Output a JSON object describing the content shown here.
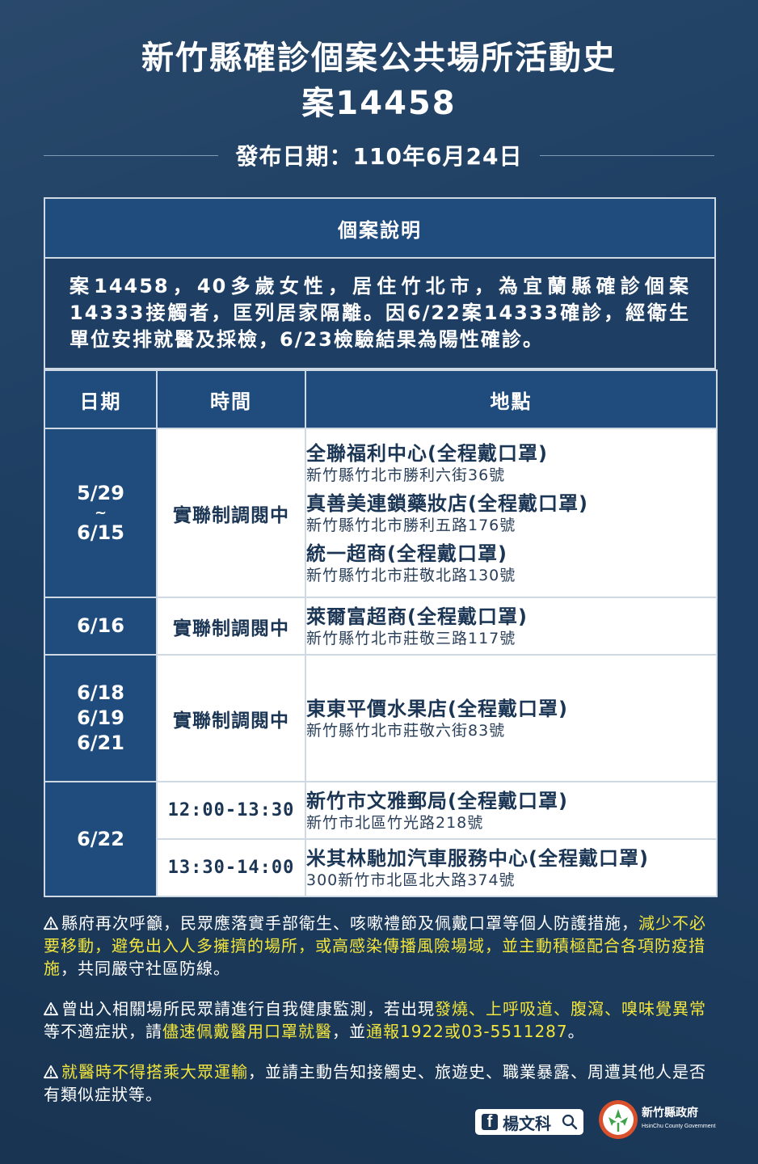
{
  "header": {
    "title_line1": "新竹縣確診個案公共場所活動史",
    "title_line2": "案14458",
    "release_date": "發布日期：110年6月24日"
  },
  "case": {
    "heading": "個案說明",
    "description": "案14458，40多歲女性，居住竹北市，為宜蘭縣確診個案14333接觸者，匡列居家隔離。因6/22案14333確診，經衛生單位安排就醫及採檢，6/23檢驗結果為陽性確診。"
  },
  "table": {
    "headers": {
      "date": "日期",
      "time": "時間",
      "place": "地點"
    },
    "rows": [
      {
        "date": "5/29\n~\n6/15",
        "time": "實聯制調閱中",
        "places": [
          {
            "name": "全聯福利中心(全程戴口罩)",
            "address": "新竹縣竹北市勝利六街36號"
          },
          {
            "name": "真善美連鎖藥妝店(全程戴口罩)",
            "address": "新竹縣竹北市勝利五路176號"
          },
          {
            "name": "統一超商(全程戴口罩)",
            "address": "新竹縣竹北市莊敬北路130號"
          }
        ]
      },
      {
        "date": "6/16",
        "time": "實聯制調閱中",
        "places": [
          {
            "name": "萊爾富超商(全程戴口罩)",
            "address": "新竹縣竹北市莊敬三路117號"
          }
        ]
      },
      {
        "date": "6/18\n6/19\n6/21",
        "time": "實聯制調閱中",
        "places": [
          {
            "name": "東東平價水果店(全程戴口罩)",
            "address": "新竹縣竹北市莊敬六街83號"
          }
        ]
      },
      {
        "date": "6/22",
        "time": "12:00-13:30",
        "places": [
          {
            "name": "新竹市文雅郵局(全程戴口罩)",
            "address": "新竹市北區竹光路218號"
          }
        ]
      },
      {
        "date": "",
        "time": "13:30-14:00",
        "places": [
          {
            "name": "米其林馳加汽車服務中心(全程戴口罩)",
            "address": "300新竹市北區北大路374號"
          }
        ]
      }
    ]
  },
  "notes": [
    {
      "p1": "縣府再次呼籲，民眾應落實手部衛生、咳嗽禮節及佩戴口罩等個人防護措施，",
      "h1": "減少不必要移動，避免出入人多擁擠的場所，或高感染傳播風險場域，並主動積極配合各項防疫措施",
      "p2": "，共同嚴守社區防線。"
    },
    {
      "p1": "曾出入相關場所民眾請進行自我健康監測，若出現",
      "h1": "發燒、上呼吸道、腹瀉、嗅味覺異常",
      "p2": "等不適症狀，請",
      "h2": "儘速佩戴醫用口罩就醫",
      "p3": "，並",
      "h3": "通報1922或03-5511287",
      "p4": "。"
    },
    {
      "h1": "就醫時不得搭乘大眾運輸",
      "p1": "，並請主動告知接觸史、旅遊史、職業暴露、周遭其他人是否有類似症狀等。"
    }
  ],
  "footer": {
    "facebook_name": "楊文科",
    "facebook_icon": "facebook-icon",
    "search_icon": "search-icon",
    "gov_name": "新竹縣政府",
    "gov_name_en": "HsinChu County Government"
  },
  "colors": {
    "background": "#1e3f63",
    "header_cell": "#1f4b7d",
    "highlight": "#f2e53b",
    "logo_red": "#d9502c",
    "logo_green": "#3ea24a"
  }
}
